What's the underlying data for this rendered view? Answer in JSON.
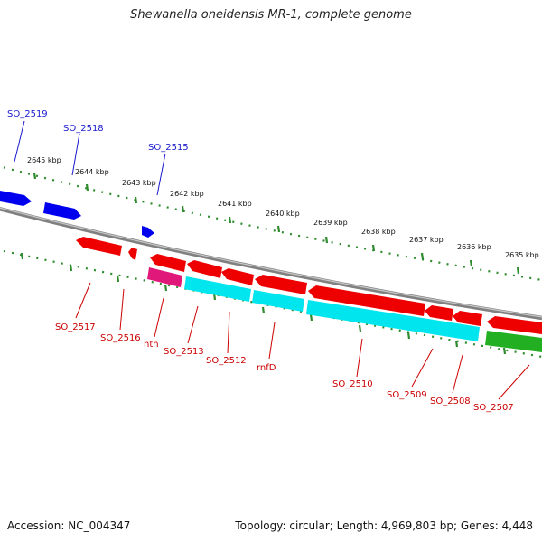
{
  "title": "Shewanella oneidensis MR-1, complete genome",
  "footer": {
    "accession": "Accession: NC_004347",
    "topology": "Topology: circular; Length: 4,969,803 bp; Genes: 4,448"
  },
  "colors": {
    "backbone": "#808080",
    "ruler": "#2e8b2e",
    "strand_forward": "#0000ee",
    "strand_reverse": "#ee0000",
    "cyan": "#00e5ee",
    "magenta": "#e0187a",
    "green": "#22b022",
    "label_blue": "#1a1acc",
    "label_red": "#cc0000"
  },
  "ticks": [
    "2645 kbp",
    "2644 kbp",
    "2643 kbp",
    "2642 kbp",
    "2641 kbp",
    "2640 kbp",
    "2639 kbp",
    "2638 kbp",
    "2637 kbp",
    "2636 kbp",
    "2635 kbp"
  ],
  "labels_forward": [
    "SO_2519",
    "SO_2518",
    "SO_2515"
  ],
  "labels_reverse": [
    "SO_2517",
    "SO_2516",
    "nth",
    "SO_2513",
    "SO_2512",
    "rnfD",
    "SO_2510",
    "SO_2509",
    "SO_2508",
    "SO_2507"
  ]
}
